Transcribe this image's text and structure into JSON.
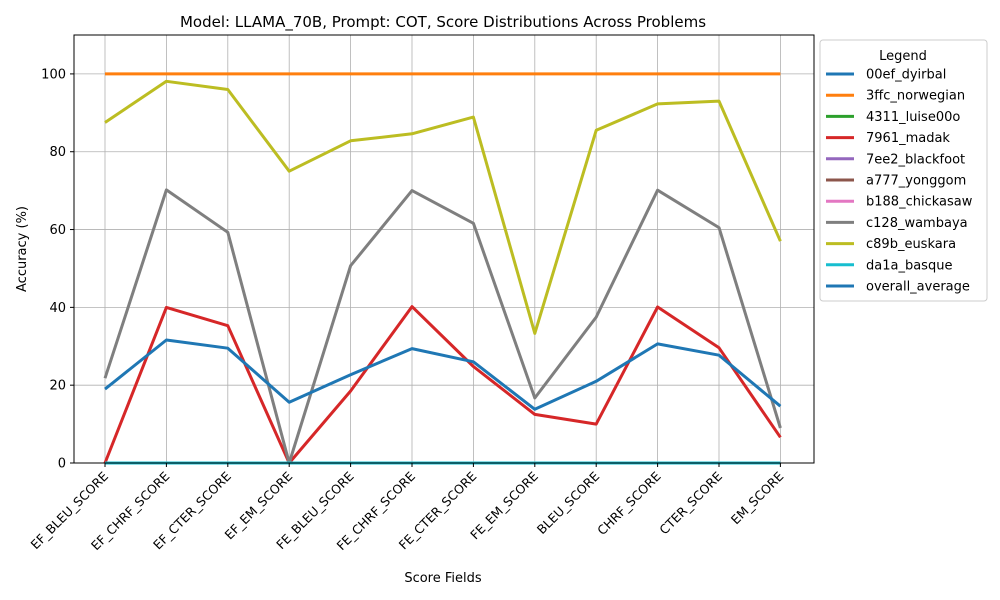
{
  "chart_data": {
    "type": "line",
    "title": "Model: LLAMA_70B, Prompt: COT, Score Distributions Across Problems",
    "xlabel": "Score Fields",
    "ylabel": "Accuracy (%)",
    "categories": [
      "EF_BLEU_SCORE",
      "EF_CHRF_SCORE",
      "EF_CTER_SCORE",
      "EF_EM_SCORE",
      "FE_BLEU_SCORE",
      "FE_CHRF_SCORE",
      "FE_CTER_SCORE",
      "FE_EM_SCORE",
      "BLEU_SCORE",
      "CHRF_SCORE",
      "CTER_SCORE",
      "EM_SCORE"
    ],
    "ylim": [
      0,
      110
    ],
    "yticks": [
      0,
      20,
      40,
      60,
      80,
      100
    ],
    "grid": true,
    "legend_title": "Legend",
    "legend_placement": "outside-right-top",
    "series": [
      {
        "name": "00ef_dyirbal",
        "color": "#1f77b4",
        "values": [
          0,
          0,
          0,
          0,
          0,
          0,
          0,
          0,
          0,
          0,
          0,
          0
        ]
      },
      {
        "name": "3ffc_norwegian",
        "color": "#ff7f0e",
        "values": [
          100,
          100,
          100,
          100,
          100,
          100,
          100,
          100,
          100,
          100,
          100,
          100
        ]
      },
      {
        "name": "4311_luise00o",
        "color": "#2ca02c",
        "values": [
          0,
          0,
          0,
          0,
          0,
          0,
          0,
          0,
          0,
          0,
          0,
          0
        ]
      },
      {
        "name": "7961_madak",
        "color": "#d62728",
        "values": [
          0,
          40,
          35.3,
          0,
          18.5,
          40.2,
          24.8,
          12.5,
          10,
          40.1,
          29.6,
          6.6
        ]
      },
      {
        "name": "7ee2_blackfoot",
        "color": "#9467bd",
        "values": [
          0,
          0,
          0,
          0,
          0,
          0,
          0,
          0,
          0,
          0,
          0,
          0
        ]
      },
      {
        "name": "a777_yonggom",
        "color": "#8c564b",
        "values": [
          0,
          0,
          0,
          0,
          0,
          0,
          0,
          0,
          0,
          0,
          0,
          0
        ]
      },
      {
        "name": "b188_chickasaw",
        "color": "#e377c2",
        "values": [
          0,
          0,
          0,
          0,
          0,
          0,
          0,
          0,
          0,
          0,
          0,
          0
        ]
      },
      {
        "name": "c128_wambaya",
        "color": "#7f7f7f",
        "values": [
          21.8,
          70.2,
          59.3,
          0,
          50.7,
          70,
          61.6,
          16.7,
          37.5,
          70.1,
          60.5,
          9
        ]
      },
      {
        "name": "c89b_euskara",
        "color": "#bcbd22",
        "values": [
          87.5,
          98.1,
          96,
          75,
          82.8,
          84.6,
          88.9,
          33.3,
          85.5,
          92.3,
          93,
          57
        ]
      },
      {
        "name": "da1a_basque",
        "color": "#17becf",
        "values": [
          0,
          0,
          0,
          0,
          0,
          0,
          0,
          0,
          0,
          0,
          0,
          0
        ]
      },
      {
        "name": "overall_average",
        "color": "#1f77b4",
        "values": [
          19,
          31.6,
          29.5,
          15.6,
          22.7,
          29.4,
          26,
          13.8,
          21,
          30.6,
          27.7,
          14.6
        ]
      }
    ]
  }
}
